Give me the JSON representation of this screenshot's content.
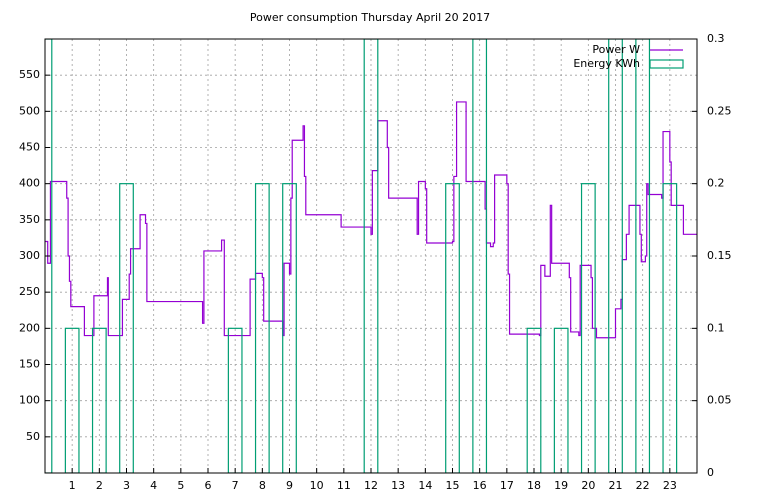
{
  "chart_data": {
    "type": "line",
    "title": "Power consumption Thursday April 20 2017",
    "xlim": [
      0,
      24
    ],
    "xticks": [
      1,
      2,
      3,
      4,
      5,
      6,
      7,
      8,
      9,
      10,
      11,
      12,
      13,
      14,
      15,
      16,
      17,
      18,
      19,
      20,
      21,
      22,
      23
    ],
    "ylim": [
      0,
      600
    ],
    "yticks": [
      50,
      100,
      150,
      200,
      250,
      300,
      350,
      400,
      450,
      500,
      550
    ],
    "y2lim": [
      0,
      0.3
    ],
    "y2ticks": [
      0,
      0.05,
      0.1,
      0.15,
      0.2,
      0.25,
      0.3
    ],
    "grid": true,
    "legend": "top-right",
    "series": [
      {
        "name": "Power W",
        "color": "#9400d3",
        "style": "steps",
        "x": [
          0,
          0.1,
          0.2,
          0.8,
          0.85,
          0.9,
          0.95,
          1.45,
          1.8,
          2.3,
          2.33,
          2.85,
          3.1,
          3.15,
          3.5,
          3.7,
          3.75,
          5.8,
          5.85,
          6.5,
          6.6,
          7.55,
          7.75,
          8.0,
          8.05,
          8.75,
          8.8,
          9.0,
          9.05,
          9.1,
          9.5,
          9.55,
          9.6,
          10.9,
          12.0,
          12.05,
          12.25,
          12.6,
          12.65,
          13.7,
          13.75,
          14.0,
          14.05,
          15.0,
          15.05,
          15.15,
          15.5,
          16.2,
          16.25,
          16.4,
          16.5,
          16.55,
          17.0,
          17.05,
          17.1,
          18.2,
          18.25,
          18.4,
          18.6,
          18.65,
          19.3,
          19.35,
          19.65,
          19.7,
          20.1,
          20.15,
          20.3,
          21.0,
          21.2,
          21.25,
          21.4,
          21.5,
          21.9,
          21.95,
          22.1,
          22.15,
          22.2,
          22.7,
          22.75,
          23.0,
          23.05,
          23.5,
          24
        ],
        "values": [
          320,
          290,
          403,
          380,
          300,
          265,
          230,
          190,
          245,
          270,
          190,
          240,
          275,
          310,
          357,
          345,
          237,
          207,
          307,
          322,
          190,
          268,
          276,
          270,
          210,
          190,
          290,
          275,
          380,
          460,
          480,
          410,
          357,
          340,
          330,
          418,
          487,
          450,
          380,
          330,
          403,
          393,
          318,
          320,
          410,
          513,
          403,
          365,
          318,
          313,
          318,
          412,
          400,
          275,
          192,
          190,
          287,
          272,
          370,
          290,
          270,
          195,
          190,
          287,
          270,
          200,
          187,
          227,
          240,
          295,
          330,
          370,
          330,
          292,
          300,
          400,
          385,
          380,
          472,
          430,
          370,
          330,
          330
        ]
      },
      {
        "name": "Energy KWh",
        "color": "#009e73",
        "style": "boxes",
        "axis": "y2",
        "x": [
          0,
          1,
          2,
          3,
          7,
          8,
          9,
          12,
          15,
          16,
          18,
          19,
          20,
          21,
          22,
          23
        ],
        "values": [
          0.3,
          0.1,
          0.1,
          0.2,
          0.1,
          0.2,
          0.2,
          0.3,
          0.2,
          0.3,
          0.1,
          0.1,
          0.2,
          0.3,
          0.3,
          0.2
        ]
      }
    ]
  }
}
